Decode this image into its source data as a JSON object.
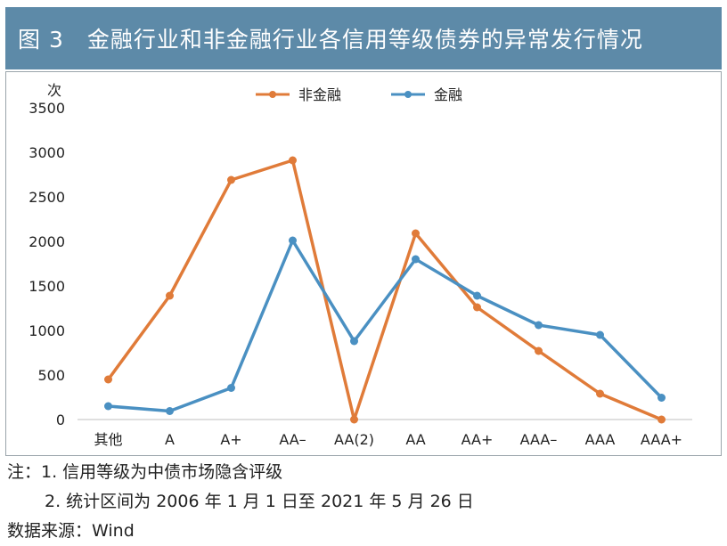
{
  "header": {
    "title": "图 3　金融行业和非金融行业各信用等级债券的异常发行情况"
  },
  "chart_data": {
    "type": "line",
    "ylabel": "次",
    "ylim": [
      0,
      3500
    ],
    "yticks": [
      0,
      500,
      1000,
      1500,
      2000,
      2500,
      3000,
      3500
    ],
    "categories": [
      "其他",
      "A",
      "A+",
      "AA–",
      "AA(2)",
      "AA",
      "AA+",
      "AAA–",
      "AAA",
      "AAA+"
    ],
    "legend_position": "top-center",
    "grid": false,
    "series": [
      {
        "name": "非金融",
        "color": "#e07b39",
        "values": [
          450,
          1390,
          2690,
          2910,
          0,
          2090,
          1260,
          770,
          290,
          0
        ]
      },
      {
        "name": "金融",
        "color": "#4a90c2",
        "values": [
          150,
          95,
          355,
          2010,
          880,
          1800,
          1390,
          1060,
          950,
          245
        ]
      }
    ]
  },
  "notes": {
    "note1": "注：1. 信用等级为中债市场隐含评级",
    "note2": "2. 统计区间为 2006 年 1 月 1 日至 2021 年 5 月 26 日",
    "source": "数据来源：Wind"
  }
}
